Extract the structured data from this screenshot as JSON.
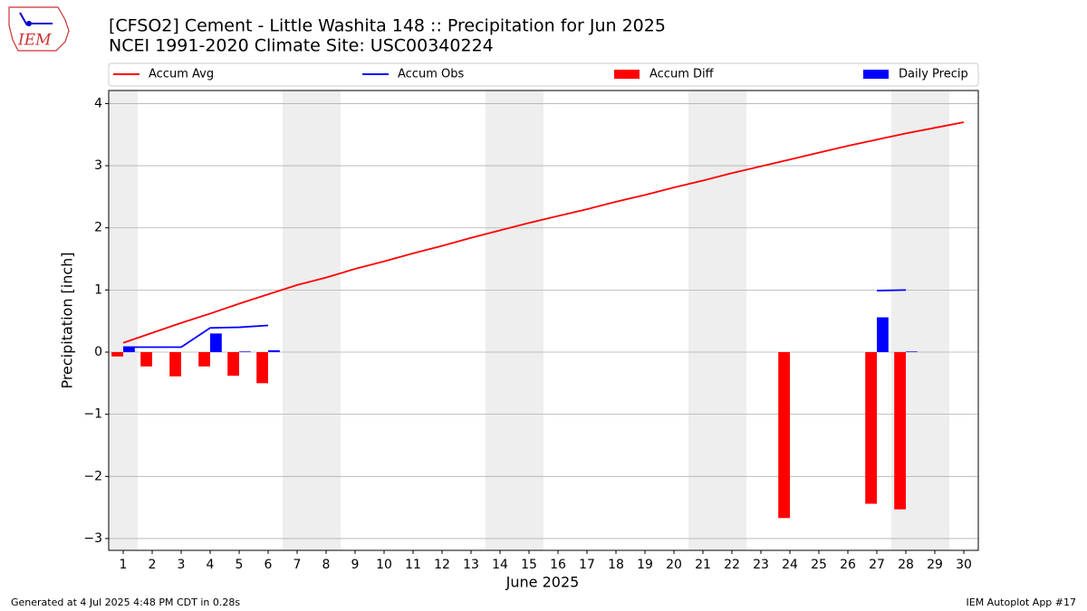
{
  "chart_data": {
    "type": "bar-line",
    "title": "[CFSO2] Cement - Little Washita 148 :: Precipitation for Jun 2025",
    "subtitle": "NCEI 1991-2020 Climate Site: USC00340224",
    "xlabel": "June 2025",
    "ylabel": "Precipitation [inch]",
    "x": [
      1,
      2,
      3,
      4,
      5,
      6,
      7,
      8,
      9,
      10,
      11,
      12,
      13,
      14,
      15,
      16,
      17,
      18,
      19,
      20,
      21,
      22,
      23,
      24,
      25,
      26,
      27,
      28,
      29,
      30
    ],
    "xlim": [
      0.5,
      30.5
    ],
    "xticks": [
      1,
      2,
      3,
      4,
      5,
      6,
      7,
      8,
      9,
      10,
      11,
      12,
      13,
      14,
      15,
      16,
      17,
      18,
      19,
      20,
      21,
      22,
      23,
      24,
      25,
      26,
      27,
      28,
      29,
      30
    ],
    "ylim": [
      -3.19,
      4.21
    ],
    "yticks": [
      {
        "value": -3,
        "label": "−3"
      },
      {
        "value": -2,
        "label": "−2"
      },
      {
        "value": -1,
        "label": "−1"
      },
      0,
      1,
      2,
      3,
      4
    ],
    "grid": true,
    "weekend_days": [
      1,
      7,
      8,
      14,
      15,
      21,
      22,
      28,
      29
    ],
    "series": [
      {
        "name": "Accum Avg",
        "kind": "line",
        "color": "#ff0000",
        "values": [
          0.15,
          0.31,
          0.47,
          0.62,
          0.78,
          0.93,
          1.08,
          1.2,
          1.34,
          1.46,
          1.59,
          1.71,
          1.84,
          1.96,
          2.08,
          2.19,
          2.3,
          2.42,
          2.53,
          2.65,
          2.76,
          2.88,
          2.99,
          3.1,
          3.21,
          3.32,
          3.42,
          3.52,
          3.61,
          3.7
        ]
      },
      {
        "name": "Accum Obs",
        "kind": "line",
        "color": "#0000ff",
        "values": [
          0.08,
          0.08,
          0.08,
          0.39,
          0.4,
          0.43,
          null,
          null,
          null,
          null,
          null,
          null,
          null,
          null,
          null,
          null,
          null,
          null,
          null,
          null,
          null,
          null,
          null,
          null,
          null,
          null,
          0.99,
          1.0,
          null,
          null
        ]
      },
      {
        "name": "Accum Diff",
        "kind": "bar",
        "offset": "left",
        "color": "#ff0000",
        "values": [
          -0.07,
          -0.23,
          -0.39,
          -0.23,
          -0.38,
          -0.5,
          null,
          null,
          null,
          null,
          null,
          null,
          null,
          null,
          null,
          null,
          null,
          null,
          null,
          null,
          null,
          null,
          null,
          -2.67,
          null,
          null,
          -2.44,
          -2.53,
          null,
          null
        ]
      },
      {
        "name": "Daily Precip",
        "kind": "bar",
        "offset": "right",
        "color": "#0000ff",
        "values": [
          0.08,
          0,
          0,
          0.3,
          0.01,
          0.03,
          null,
          null,
          null,
          null,
          null,
          null,
          null,
          null,
          null,
          null,
          null,
          null,
          null,
          null,
          null,
          null,
          null,
          null,
          null,
          null,
          0.56,
          0.01,
          null,
          null
        ]
      }
    ]
  },
  "logo_text": "IEM",
  "footer_left": "Generated at 4 Jul 2025 4:48 PM CDT in 0.28s",
  "footer_right": "IEM Autoplot App #17"
}
